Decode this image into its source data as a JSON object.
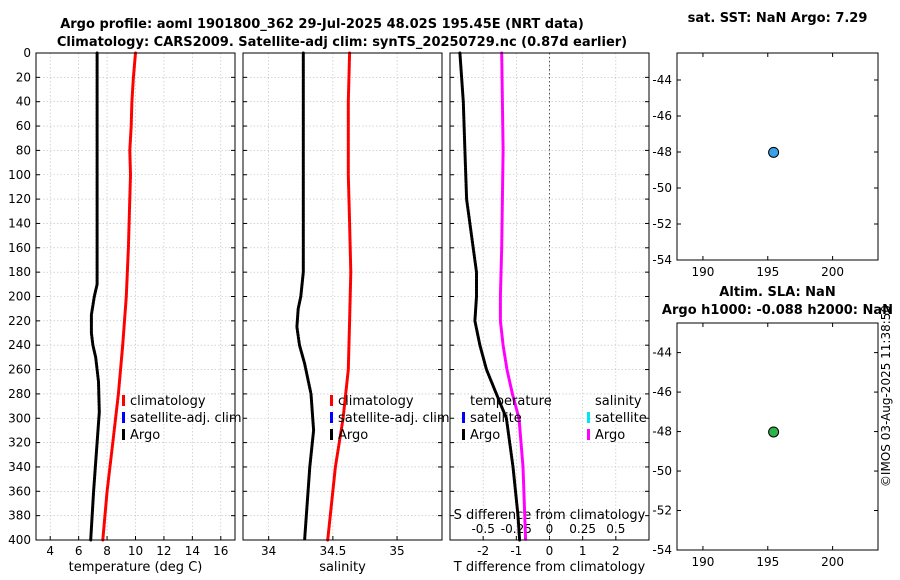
{
  "title_line1": "Argo profile: aoml 1901800_362 29-Jul-2025 48.02S 195.45E (NRT data)",
  "title_line2": "Climatology: CARS2009. Satellite-adj clim: synTS_20250729.nc (0.87d earlier)",
  "watermark": "©IMOS 03-Aug-2025 11:38:50",
  "colors": {
    "argo": "#000000",
    "climatology": "#ff0000",
    "satellite": "#0000ff",
    "satellite_salinity": "#00e5ee",
    "argo_salinity_diff": "#ff00ff",
    "marker_top": "#3aa0e8",
    "marker_bottom": "#2db34a",
    "grid": "#bbbbbb"
  },
  "chart_data": [
    {
      "id": "temperature",
      "type": "line",
      "xlabel": "temperature (deg C)",
      "ylabel": "",
      "xlim": [
        3,
        17
      ],
      "ylim": [
        400,
        0
      ],
      "xticks": [
        4,
        6,
        8,
        10,
        12,
        14,
        16
      ],
      "xtick_labels": [
        "4",
        "6",
        "8",
        "10",
        "12",
        "14",
        "16"
      ],
      "yticks": [
        0,
        20,
        40,
        60,
        80,
        100,
        120,
        140,
        160,
        180,
        200,
        220,
        240,
        260,
        280,
        300,
        320,
        340,
        360,
        380,
        400
      ],
      "ytick_labels": [
        "0",
        "20",
        "40",
        "60",
        "80",
        "100",
        "120",
        "140",
        "160",
        "180",
        "200",
        "220",
        "240",
        "260",
        "280",
        "300",
        "320",
        "340",
        "360",
        "380",
        "400"
      ],
      "legend": [
        "climatology",
        "satellite-adj. clim",
        "Argo"
      ],
      "series": [
        {
          "name": "climatology",
          "color_key": "climatology",
          "depth": [
            0,
            20,
            40,
            60,
            80,
            100,
            120,
            160,
            200,
            240,
            280,
            320,
            360,
            400
          ],
          "values": [
            10.0,
            9.85,
            9.75,
            9.7,
            9.6,
            9.65,
            9.6,
            9.5,
            9.35,
            9.1,
            8.8,
            8.4,
            8.0,
            7.7
          ]
        },
        {
          "name": "Argo",
          "color_key": "argo",
          "depth": [
            0,
            100,
            190,
            200,
            215,
            230,
            240,
            250,
            270,
            295,
            320,
            360,
            400
          ],
          "values": [
            7.3,
            7.3,
            7.3,
            7.1,
            6.9,
            6.9,
            7.0,
            7.2,
            7.4,
            7.45,
            7.3,
            7.05,
            6.85
          ]
        }
      ]
    },
    {
      "id": "salinity",
      "type": "line",
      "xlabel": "salinity",
      "ylabel": "",
      "xlim": [
        33.8,
        35.35
      ],
      "ylim": [
        400,
        0
      ],
      "xticks": [
        34,
        34.5,
        35
      ],
      "xtick_labels": [
        "34",
        "34.5",
        "35"
      ],
      "legend": [
        "climatology",
        "satellite-adj. clim",
        "Argo"
      ],
      "series": [
        {
          "name": "climatology",
          "color_key": "climatology",
          "depth": [
            0,
            40,
            100,
            140,
            180,
            220,
            260,
            280,
            300,
            340,
            400
          ],
          "values": [
            34.63,
            34.62,
            34.62,
            34.63,
            34.64,
            34.63,
            34.62,
            34.6,
            34.58,
            34.52,
            34.46
          ]
        },
        {
          "name": "Argo",
          "color_key": "argo",
          "depth": [
            0,
            100,
            180,
            200,
            210,
            225,
            240,
            255,
            280,
            310,
            340,
            400
          ],
          "values": [
            34.27,
            34.27,
            34.27,
            34.25,
            34.23,
            34.22,
            34.24,
            34.28,
            34.33,
            34.35,
            34.32,
            34.28
          ]
        }
      ]
    },
    {
      "id": "difference",
      "type": "line",
      "xlabel": "T difference from climatology",
      "xlabel_top": "S difference from climatology",
      "xlim": [
        -3,
        3
      ],
      "xlim_top": [
        -0.75,
        0.75
      ],
      "ylim": [
        400,
        0
      ],
      "xticks": [
        -2,
        -1,
        0,
        1,
        2
      ],
      "xtick_labels": [
        "-2",
        "-1",
        "0",
        "1",
        "2"
      ],
      "xticks_top": [
        -0.5,
        -0.25,
        0,
        0.25,
        0.5
      ],
      "xtick_labels_top": [
        "-0.5",
        "-0.25",
        "0",
        "0.25",
        "0.5"
      ],
      "legend_temperature": [
        "temperature",
        "satellite",
        "Argo"
      ],
      "legend_salinity": [
        "salinity",
        "satellite",
        "Argo"
      ],
      "series": [
        {
          "name": "T difference (Argo - clim)",
          "color_key": "argo",
          "depth": [
            0,
            40,
            80,
            120,
            160,
            180,
            200,
            220,
            240,
            260,
            280,
            300,
            340,
            380,
            400
          ],
          "values": [
            -2.7,
            -2.6,
            -2.55,
            -2.5,
            -2.3,
            -2.2,
            -2.2,
            -2.25,
            -2.1,
            -1.9,
            -1.6,
            -1.3,
            -1.1,
            -0.95,
            -0.9
          ]
        },
        {
          "name": "S difference (Argo - clim)",
          "color_key": "argo_salinity_diff",
          "depth": [
            0,
            80,
            160,
            200,
            220,
            240,
            260,
            280,
            300,
            340,
            400
          ],
          "values": [
            -0.36,
            -0.35,
            -0.36,
            -0.37,
            -0.37,
            -0.35,
            -0.32,
            -0.28,
            -0.23,
            -0.2,
            -0.18
          ]
        }
      ]
    },
    {
      "id": "sst_map",
      "type": "scatter",
      "title": "sat. SST: NaN Argo: 7.29",
      "xlim": [
        188,
        203.5
      ],
      "ylim": [
        -54,
        -42.5
      ],
      "xticks": [
        190,
        195,
        200
      ],
      "xtick_labels": [
        "190",
        "195",
        "200"
      ],
      "yticks": [
        -54,
        -52,
        -50,
        -48,
        -46,
        -44
      ],
      "ytick_labels": [
        "-54",
        "-52",
        "-50",
        "-48",
        "-46",
        "-44"
      ],
      "points": [
        {
          "x": 195.45,
          "y": -48.02,
          "color_key": "marker_top"
        }
      ]
    },
    {
      "id": "sla_map",
      "type": "scatter",
      "title_line1": "Altim. SLA: NaN",
      "title_line2": "Argo h1000: -0.088 h2000: NaN",
      "xlim": [
        188,
        203.5
      ],
      "ylim": [
        -54,
        -42.5
      ],
      "xticks": [
        190,
        195,
        200
      ],
      "xtick_labels": [
        "190",
        "195",
        "200"
      ],
      "yticks": [
        -54,
        -52,
        -50,
        -48,
        -46,
        -44
      ],
      "ytick_labels": [
        "-54",
        "-52",
        "-50",
        "-48",
        "-46",
        "-44"
      ],
      "points": [
        {
          "x": 195.45,
          "y": -48.02,
          "color_key": "marker_bottom"
        }
      ]
    }
  ]
}
